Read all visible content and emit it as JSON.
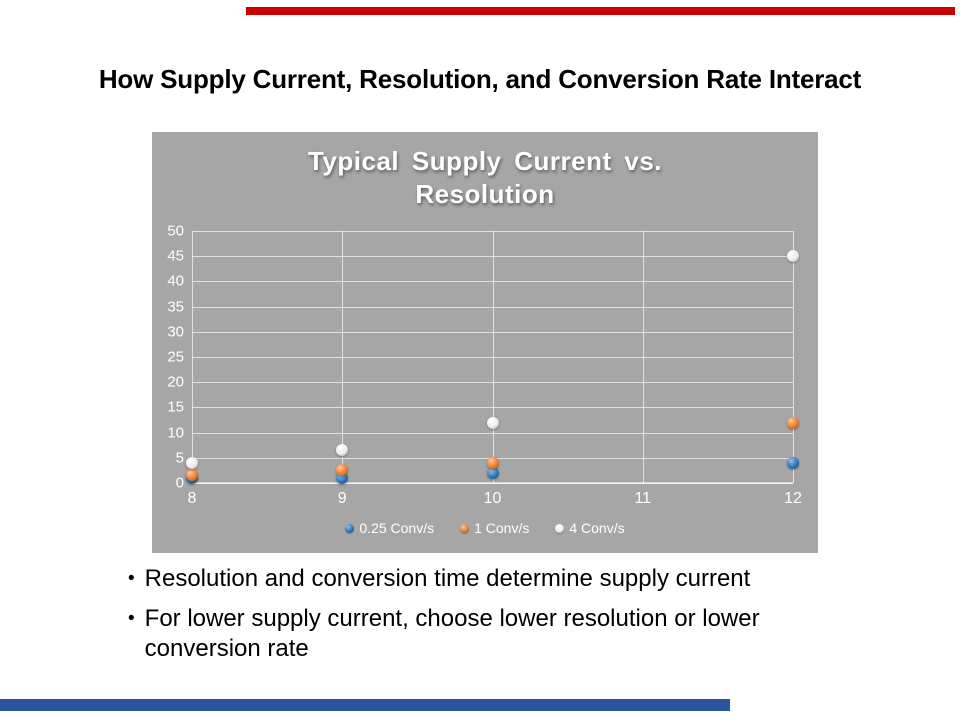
{
  "slide": {
    "title": "How Supply Current, Resolution, and Conversion Rate Interact",
    "bullets": [
      "Resolution and conversion time determine supply current",
      "For lower supply current, choose lower resolution or lower conversion rate"
    ],
    "bullet_glyph": "•",
    "accent_colors": {
      "top_bar": "#CC0000",
      "bottom_bar": "#29549E"
    }
  },
  "chart_data": {
    "type": "scatter",
    "title": "Typical Supply Current vs. Resolution",
    "background": "#A6A6A6",
    "x": [
      8,
      9,
      10,
      12
    ],
    "series": [
      {
        "name": "0.25 Conv/s",
        "color": "#2E75B6",
        "highlight": "#8FC0EC",
        "shade": "#17456F",
        "values": [
          1,
          1,
          2,
          4
        ]
      },
      {
        "name": "1 Conv/s",
        "color": "#ED7D31",
        "highlight": "#FFC79A",
        "shade": "#9C4A0E",
        "values": [
          1.5,
          2.5,
          4,
          12
        ]
      },
      {
        "name": "4 Conv/s",
        "color": "#EDEDED",
        "highlight": "#FFFFFF",
        "shade": "#9E9E9E",
        "values": [
          4,
          6.5,
          12,
          45
        ]
      }
    ],
    "xlim": [
      8,
      12
    ],
    "ylim": [
      0,
      50
    ],
    "x_ticks": [
      8,
      9,
      10,
      11,
      12
    ],
    "y_ticks": [
      0,
      5,
      10,
      15,
      20,
      25,
      30,
      35,
      40,
      45,
      50
    ],
    "grid": true,
    "legend_position": "bottom"
  }
}
